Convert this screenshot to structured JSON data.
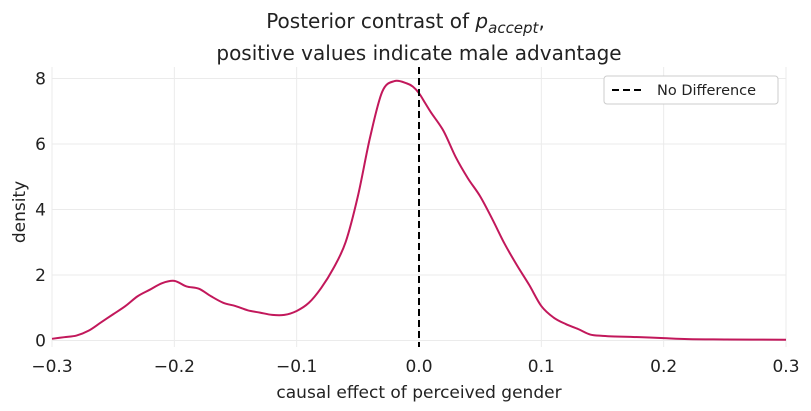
{
  "chart_data": {
    "type": "line",
    "title": "Posterior contrast of p_accept,",
    "title_parts": {
      "prefix": "Posterior contrast of ",
      "var": "p",
      "sub": "accept",
      "suffix": ","
    },
    "subtitle": "positive values indicate male advantage",
    "xlabel": "causal effect of perceived gender",
    "ylabel": "density",
    "xlim": [
      -0.3,
      0.3
    ],
    "ylim": [
      -0.2,
      8.35
    ],
    "xticks": [
      -0.3,
      -0.2,
      -0.1,
      0.0,
      0.1,
      0.2,
      0.3
    ],
    "xtick_labels": [
      "−0.3",
      "−0.2",
      "−0.1",
      "0.0",
      "0.1",
      "0.2",
      "0.3"
    ],
    "yticks": [
      0,
      2,
      4,
      6,
      8
    ],
    "ytick_labels": [
      "0",
      "2",
      "4",
      "6",
      "8"
    ],
    "grid": true,
    "legend": {
      "position": "top-right",
      "entries": [
        {
          "label": "No Difference",
          "style": "dashed",
          "color": "#000000"
        }
      ]
    },
    "colors": {
      "density": "#c2185b",
      "reference": "#000000",
      "grid": "#ebebeb"
    },
    "reference_line": {
      "x": 0.0,
      "label": "No Difference"
    },
    "series": [
      {
        "name": "posterior density",
        "x": [
          -0.3,
          -0.29,
          -0.28,
          -0.27,
          -0.26,
          -0.25,
          -0.24,
          -0.23,
          -0.22,
          -0.21,
          -0.2,
          -0.19,
          -0.18,
          -0.17,
          -0.16,
          -0.15,
          -0.14,
          -0.13,
          -0.12,
          -0.11,
          -0.1,
          -0.09,
          -0.08,
          -0.07,
          -0.06,
          -0.05,
          -0.04,
          -0.03,
          -0.02,
          -0.01,
          -0.005,
          0.0,
          0.005,
          0.01,
          0.02,
          0.03,
          0.04,
          0.05,
          0.06,
          0.07,
          0.08,
          0.09,
          0.1,
          0.11,
          0.12,
          0.13,
          0.14,
          0.15,
          0.16,
          0.18,
          0.2,
          0.22,
          0.25,
          0.3
        ],
        "y": [
          0.05,
          0.1,
          0.15,
          0.3,
          0.55,
          0.8,
          1.05,
          1.35,
          1.55,
          1.75,
          1.82,
          1.65,
          1.58,
          1.35,
          1.15,
          1.05,
          0.92,
          0.85,
          0.78,
          0.78,
          0.9,
          1.15,
          1.6,
          2.2,
          3.0,
          4.4,
          6.2,
          7.6,
          7.92,
          7.85,
          7.75,
          7.55,
          7.25,
          6.95,
          6.4,
          5.6,
          4.95,
          4.4,
          3.7,
          2.95,
          2.3,
          1.7,
          1.05,
          0.7,
          0.5,
          0.35,
          0.18,
          0.14,
          0.12,
          0.1,
          0.07,
          0.04,
          0.03,
          0.02
        ]
      }
    ]
  }
}
